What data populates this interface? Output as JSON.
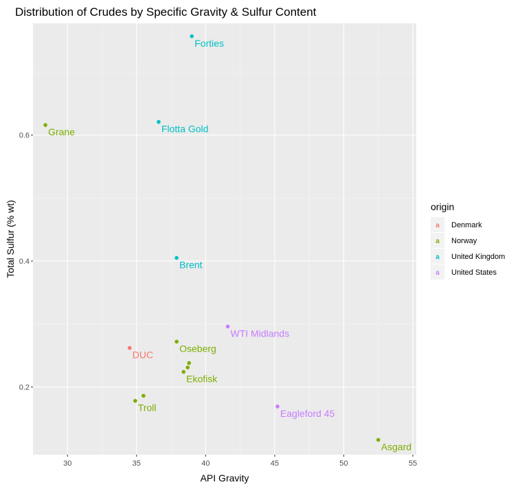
{
  "chart_data": {
    "type": "scatter",
    "title": "Distribution of Crudes by Specific Gravity & Sulfur Content",
    "xlabel": "API Gravity",
    "ylabel": "Total Sulfur (% wt)",
    "xlim": [
      27.5,
      55.25
    ],
    "ylim": [
      0.0925,
      0.7775
    ],
    "x_ticks": [
      30,
      35,
      40,
      45,
      50,
      55
    ],
    "y_ticks": [
      0.2,
      0.4,
      0.6
    ],
    "y_tick_labels": [
      "0.2",
      "0.4",
      "0.6"
    ],
    "grid": true,
    "legend": {
      "title": "origin",
      "position": "right",
      "glyph": "a",
      "entries": [
        {
          "name": "Denmark",
          "color": "#F8766D"
        },
        {
          "name": "Norway",
          "color": "#7CAE00"
        },
        {
          "name": "United Kingdom",
          "color": "#00BFC4"
        },
        {
          "name": "United States",
          "color": "#C77CFF"
        }
      ]
    },
    "points": [
      {
        "x": 39.0,
        "y": 0.757,
        "origin": "United Kingdom",
        "label": "Forties"
      },
      {
        "x": 28.4,
        "y": 0.616,
        "origin": "Norway",
        "label": "Grane"
      },
      {
        "x": 36.6,
        "y": 0.621,
        "origin": "United Kingdom",
        "label": "Flotta Gold"
      },
      {
        "x": 37.9,
        "y": 0.405,
        "origin": "United Kingdom",
        "label": "Brent"
      },
      {
        "x": 41.6,
        "y": 0.296,
        "origin": "United States",
        "label": "WTI Midlands"
      },
      {
        "x": 37.9,
        "y": 0.272,
        "origin": "Norway",
        "label": "Oseberg"
      },
      {
        "x": 34.5,
        "y": 0.262,
        "origin": "Denmark",
        "label": "DUC"
      },
      {
        "x": 38.8,
        "y": 0.238,
        "origin": "Norway",
        "label": ""
      },
      {
        "x": 38.7,
        "y": 0.231,
        "origin": "Norway",
        "label": ""
      },
      {
        "x": 38.4,
        "y": 0.224,
        "origin": "Norway",
        "label": "Ekofisk"
      },
      {
        "x": 35.5,
        "y": 0.186,
        "origin": "Norway",
        "label": ""
      },
      {
        "x": 34.9,
        "y": 0.178,
        "origin": "Norway",
        "label": "Troll"
      },
      {
        "x": 45.2,
        "y": 0.169,
        "origin": "United States",
        "label": "Eagleford 45"
      },
      {
        "x": 52.5,
        "y": 0.116,
        "origin": "Norway",
        "label": "Asgard"
      }
    ]
  }
}
